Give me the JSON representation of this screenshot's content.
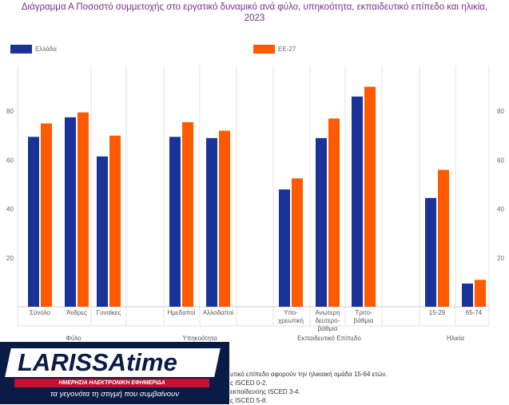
{
  "chart_data": {
    "type": "bar",
    "title": "Διάγραμμα Α Ποσοστό συμμετοχής στο εργατικό δυναμικό ανά φύλο, υπηκοότητα, εκπαιδευτικό επίπεδο και ηλικία, 2023",
    "title_lines": [
      "Διάγραμμα Α Ποσοστό συμμετοχής στο εργατικό δυναμικό ανά φύλο, υπηκοότητα, εκπαιδευτικό επίπεδο και ηλικία,",
      "2023"
    ],
    "categories": [
      "Σύνολο",
      "Άνδρες",
      "Γυναίκες",
      "Ημεδαποί",
      "Αλλοδαποί",
      "Υπο-χρεωτική",
      "Ανώτερη δευτερο-βάθμια",
      "Τριτο-βάθμια",
      "15-29",
      "65-74"
    ],
    "category_lines": [
      [
        "Σύνολο"
      ],
      [
        "Άνδρες"
      ],
      [
        "Γυναίκες"
      ],
      [
        "Ημεδαποί"
      ],
      [
        "Αλλοδαποί"
      ],
      [
        "Υπο-",
        "χρεωτική"
      ],
      [
        "Ανωτερη",
        "δευτερο-",
        "βάθμια"
      ],
      [
        "Τριτο-",
        "βάθμια"
      ],
      [
        "15-29"
      ],
      [
        "65-74"
      ]
    ],
    "groups": [
      {
        "label": "Φύλο",
        "count": 3
      },
      {
        "label": "Υπηκοότητα",
        "count": 2
      },
      {
        "label": "Εκπαιδευτικό Επίπεδο",
        "count": 3
      },
      {
        "label": "Ηλικία",
        "count": 2
      }
    ],
    "series": [
      {
        "name": "Ελλάδα",
        "color": "#1a3399",
        "values": [
          69.5,
          77.5,
          61.5,
          69.5,
          69.0,
          48.0,
          69.0,
          86.0,
          44.5,
          9.5
        ]
      },
      {
        "name": "ΕΕ-27",
        "color": "#ff5a00",
        "values": [
          75.0,
          79.5,
          70.0,
          75.5,
          72.0,
          52.5,
          77.0,
          90.0,
          56.0,
          11.0
        ]
      }
    ],
    "y_ticks": [
      20,
      40,
      60,
      80
    ],
    "ylim": [
      0,
      100
    ],
    "xlabel": "",
    "ylabel": ""
  },
  "footnote_lines": [
    "υτικό επίπεδο αφορούν την ηλικιακή ομάδα 15-64 ετών.",
    "ς ISCED 0-2.",
    "εκπαίδευσης ISCED 3-4.",
    "ς ISCED 5-8."
  ],
  "logo": {
    "name": "LARISSAtime",
    "subtitle": "ΗΜΕΡΗΣΙΑ ΗΛΕΚΤΡΟΝΙΚΗ ΕΦΗΜΕΡΙΔΑ",
    "tagline": "τα γεγονότα τη στιγμή που συμβαίνουν"
  }
}
